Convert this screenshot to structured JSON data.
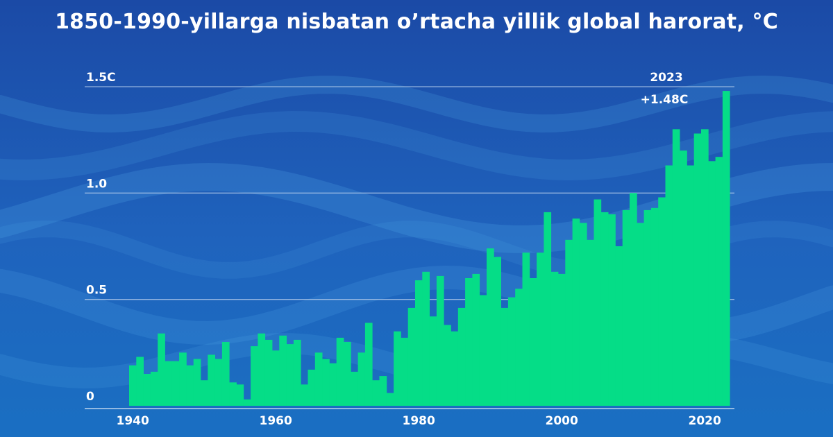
{
  "title": "1850-1990-yillarga nisbatan o’rtacha yillik global harorat, °C",
  "colors": {
    "bar": "#05dd87",
    "background_top": "#1b4aa6",
    "background_bottom": "#1a6fc2",
    "gridline": "#a9c4e6",
    "text": "#ffffff"
  },
  "chart_data": {
    "type": "bar",
    "x": [
      1940,
      1941,
      1942,
      1943,
      1944,
      1945,
      1946,
      1947,
      1948,
      1949,
      1950,
      1951,
      1952,
      1953,
      1954,
      1955,
      1956,
      1957,
      1958,
      1959,
      1960,
      1961,
      1962,
      1963,
      1964,
      1965,
      1966,
      1967,
      1968,
      1969,
      1970,
      1971,
      1972,
      1973,
      1974,
      1975,
      1976,
      1977,
      1978,
      1979,
      1980,
      1981,
      1982,
      1983,
      1984,
      1985,
      1986,
      1987,
      1988,
      1989,
      1990,
      1991,
      1992,
      1993,
      1994,
      1995,
      1996,
      1997,
      1998,
      1999,
      2000,
      2001,
      2002,
      2003,
      2004,
      2005,
      2006,
      2007,
      2008,
      2009,
      2010,
      2011,
      2012,
      2013,
      2014,
      2015,
      2016,
      2017,
      2018,
      2019,
      2020,
      2021,
      2022,
      2023
    ],
    "values": [
      0.19,
      0.23,
      0.15,
      0.16,
      0.34,
      0.21,
      0.21,
      0.25,
      0.19,
      0.22,
      0.12,
      0.24,
      0.22,
      0.3,
      0.11,
      0.1,
      0.03,
      0.28,
      0.34,
      0.31,
      0.26,
      0.33,
      0.29,
      0.31,
      0.1,
      0.17,
      0.25,
      0.22,
      0.2,
      0.32,
      0.3,
      0.16,
      0.25,
      0.39,
      0.12,
      0.14,
      0.06,
      0.35,
      0.32,
      0.46,
      0.59,
      0.63,
      0.42,
      0.61,
      0.38,
      0.35,
      0.46,
      0.6,
      0.62,
      0.52,
      0.74,
      0.7,
      0.46,
      0.51,
      0.55,
      0.72,
      0.6,
      0.72,
      0.91,
      0.63,
      0.62,
      0.78,
      0.88,
      0.86,
      0.78,
      0.97,
      0.91,
      0.9,
      0.75,
      0.92,
      1.0,
      0.86,
      0.92,
      0.93,
      0.98,
      1.13,
      1.3,
      1.2,
      1.13,
      1.28,
      1.3,
      1.15,
      1.17,
      1.48
    ],
    "x_ticks": [
      1940,
      1960,
      1980,
      2000,
      2020
    ],
    "y_ticks": [
      {
        "value": 0,
        "label": "0"
      },
      {
        "value": 0.5,
        "label": "0.5"
      },
      {
        "value": 1.0,
        "label": "1.0"
      },
      {
        "value": 1.5,
        "label": "1.5C"
      }
    ],
    "ylim": [
      0,
      1.5
    ],
    "xlim": [
      1940,
      2023
    ],
    "grid": true,
    "annotation": {
      "year": "2023",
      "value_label": "+1.48C",
      "x": 2023
    }
  }
}
